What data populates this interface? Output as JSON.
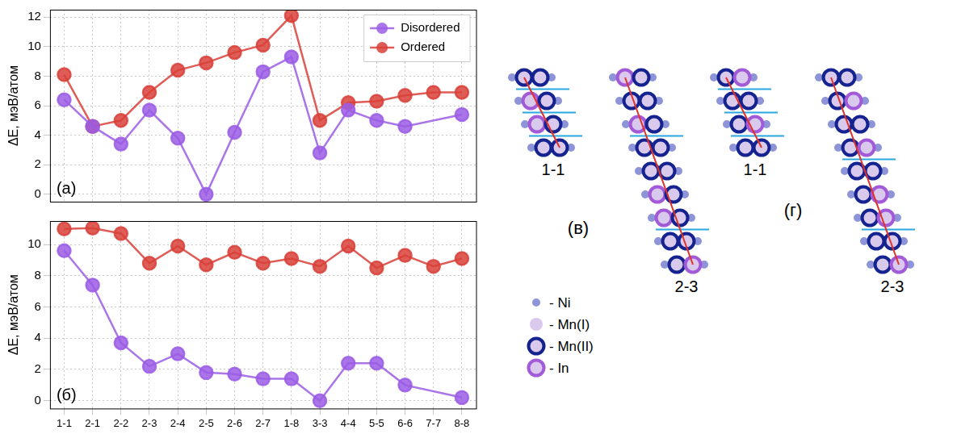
{
  "chart_data": [
    {
      "type": "line",
      "panel_label": "(a)",
      "y_label": "ΔE, мэВ/атом",
      "categories": [
        "1-1",
        "2-1",
        "2-2",
        "2-3",
        "2-4",
        "2-5",
        "2-6",
        "2-7",
        "1-8",
        "3-3",
        "4-4",
        "5-5",
        "6-6",
        "7-7",
        "8-8"
      ],
      "series": [
        {
          "name": "Disordered",
          "color": "#9b5de5",
          "marker": "circle",
          "values": [
            6.4,
            4.6,
            3.4,
            5.7,
            3.8,
            0.0,
            4.2,
            8.3,
            9.3,
            2.8,
            5.7,
            5.0,
            4.6,
            null,
            5.4
          ]
        },
        {
          "name": "Ordered",
          "color": "#d9413a",
          "marker": "circle",
          "values": [
            8.1,
            4.6,
            5.0,
            6.9,
            8.4,
            8.9,
            9.6,
            10.1,
            12.1,
            5.0,
            6.2,
            6.3,
            6.7,
            6.9,
            6.9
          ]
        }
      ],
      "ylim": [
        -0.5,
        12.5
      ],
      "yticks": [
        0,
        2,
        4,
        6,
        8,
        10,
        12
      ],
      "grid": true,
      "legend": "upper right",
      "tick_labels": "y"
    },
    {
      "type": "line",
      "panel_label": "(б)",
      "y_label": "ΔE, мэВ/атом",
      "categories": [
        "1-1",
        "2-1",
        "2-2",
        "2-3",
        "2-4",
        "2-5",
        "2-6",
        "2-7",
        "1-8",
        "3-3",
        "4-4",
        "5-5",
        "6-6",
        "7-7",
        "8-8"
      ],
      "series": [
        {
          "name": "Disordered",
          "color": "#9b5de5",
          "marker": "circle",
          "values": [
            9.6,
            7.4,
            3.7,
            2.2,
            3.0,
            1.8,
            1.7,
            1.4,
            1.4,
            0.0,
            2.4,
            2.4,
            1.0,
            null,
            0.2
          ]
        },
        {
          "name": "Ordered",
          "color": "#d9413a",
          "marker": "circle",
          "values": [
            11.0,
            11.05,
            10.7,
            8.8,
            9.9,
            8.7,
            9.5,
            8.8,
            9.1,
            8.6,
            9.9,
            8.5,
            9.3,
            8.6,
            9.1
          ]
        }
      ],
      "ylim": [
        -0.5,
        11.5
      ],
      "yticks": [
        0,
        2,
        4,
        6,
        8,
        10
      ],
      "grid": true
    }
  ],
  "diagram": {
    "panels": [
      {
        "label": "(в)",
        "structures": [
          {
            "label": "1-1",
            "rows": [
              [
                "Ni",
                "Mn(II)",
                "Mn(II)",
                "Ni"
              ],
              [
                "Ni",
                "In",
                "Mn(II)",
                "Ni"
              ],
              [
                "Ni",
                "In",
                "Mn(II)",
                "Ni"
              ],
              [
                "Ni",
                "Mn(II)",
                "Mn(II)",
                "Ni"
              ]
            ],
            "boundaries_after": [
              0,
              1,
              2
            ]
          },
          {
            "label": "2-3",
            "rows": [
              [
                "Ni",
                "In",
                "Mn(II)",
                "Ni"
              ],
              [
                "Ni",
                "Mn(II)",
                "Mn(II)",
                "Ni"
              ],
              [
                "Ni",
                "In",
                "Mn(II)",
                "Ni"
              ],
              [
                "Ni",
                "Mn(II)",
                "Mn(II)",
                "Ni"
              ],
              [
                "Ni",
                "Mn(II)",
                "Mn(II)",
                "Ni"
              ],
              [
                "Ni",
                "In",
                "Mn(II)",
                "Ni"
              ],
              [
                "Ni",
                "In",
                "Mn(II)",
                "Ni"
              ],
              [
                "Ni",
                "Mn(II)",
                "Mn(II)",
                "Ni"
              ],
              [
                "Ni",
                "Mn(II)",
                "In",
                "Ni"
              ]
            ],
            "boundaries_after": [
              2,
              6
            ]
          }
        ]
      },
      {
        "label": "(г)",
        "structures": [
          {
            "label": "1-1",
            "rows": [
              [
                "Ni",
                "Mn(II)",
                "In",
                "Ni"
              ],
              [
                "Ni",
                "Mn(II)",
                "Mn(II)",
                "Ni"
              ],
              [
                "Ni",
                "Mn(II)",
                "In",
                "Ni"
              ],
              [
                "Ni",
                "Mn(II)",
                "Mn(II)",
                "Ni"
              ]
            ],
            "boundaries_after": [
              0,
              1,
              2
            ]
          },
          {
            "label": "2-3",
            "rows": [
              [
                "Ni",
                "Mn(II)",
                "Mn(II)",
                "Ni"
              ],
              [
                "Ni",
                "Mn(II)",
                "In",
                "Ni"
              ],
              [
                "Ni",
                "Mn(II)",
                "Mn(II)",
                "Ni"
              ],
              [
                "Ni",
                "Mn(II)",
                "In",
                "Ni"
              ],
              [
                "Ni",
                "Mn(II)",
                "Mn(II)",
                "Ni"
              ],
              [
                "Ni",
                "Mn(II)",
                "In",
                "Ni"
              ],
              [
                "Ni",
                "Mn(II)",
                "In",
                "Ni"
              ],
              [
                "Ni",
                "Mn(II)",
                "Mn(II)",
                "Ni"
              ],
              [
                "Ni",
                "Mn(II)",
                "In",
                "Ni"
              ]
            ],
            "boundaries_after": [
              3,
              6
            ]
          }
        ]
      }
    ],
    "legend": [
      {
        "site": "Ni",
        "label": "- Ni"
      },
      {
        "site": "Mn(I)",
        "label": "- Mn(I)"
      },
      {
        "site": "Mn(II)",
        "label": "- Mn(II)"
      },
      {
        "site": "In",
        "label": "- In"
      }
    ]
  }
}
